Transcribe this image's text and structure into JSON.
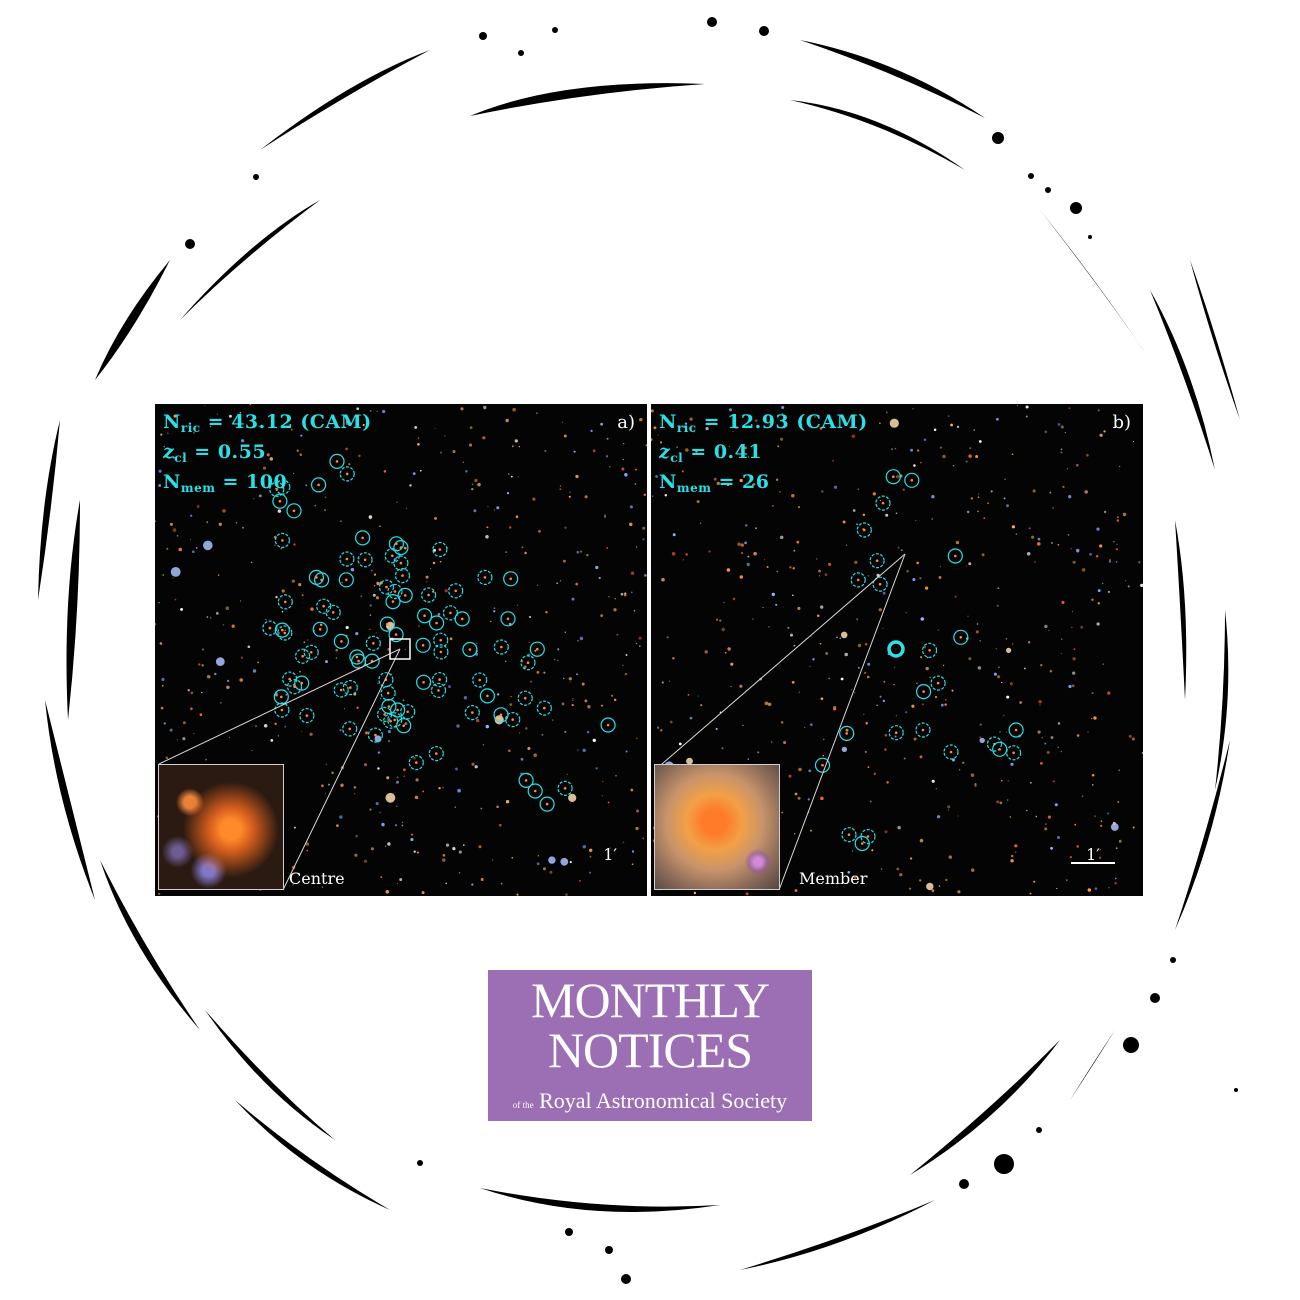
{
  "panels": [
    {
      "tag": "a)",
      "richness_label": "N",
      "richness_sub": "ric",
      "richness_value": " = 43.12 (CAM)",
      "redshift_label": "z",
      "redshift_sub": "cl",
      "redshift_value": " = 0.55",
      "members_label": "N",
      "members_sub": "mem",
      "members_value": " = 100",
      "inset_label": "Centre",
      "scale_label": "1′"
    },
    {
      "tag": "b)",
      "richness_label": "N",
      "richness_sub": "ric",
      "richness_value": " = 12.93 (CAM)",
      "redshift_label": "z",
      "redshift_sub": "cl",
      "redshift_value": " = 0.41",
      "members_label": "N",
      "members_sub": "mem",
      "members_value": " = 26",
      "inset_label": "Member",
      "scale_label": "1′"
    }
  ],
  "logo": {
    "line1": "MONTHLY",
    "line2": "NOTICES",
    "prefix": "of the",
    "line3": "Royal Astronomical Society"
  },
  "colors": {
    "member_circle": "#29e0e6",
    "logo_bg": "#9c6eb4",
    "ring": "#000000"
  }
}
